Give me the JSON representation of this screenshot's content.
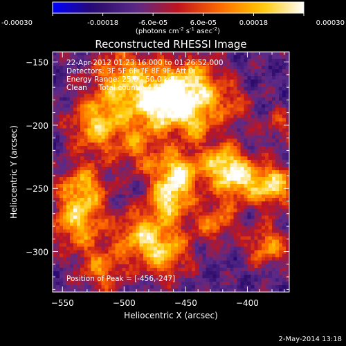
{
  "colorbar": {
    "ticks": [
      "-0.00030",
      "-0.00018",
      "-6.0e-05",
      "6.0e-05",
      "0.00018",
      "0.00030"
    ],
    "tick_values": [
      -0.0003,
      -0.00018,
      -6e-05,
      6e-05,
      0.00018,
      0.0003
    ],
    "unit_prefix": "(photons cm",
    "unit_exp1": "-2",
    "unit_mid": " s",
    "unit_exp2": "-1",
    "unit_mid2": " asec",
    "unit_exp3": "-2",
    "unit_suffix": ")",
    "range": [
      -0.0003,
      0.0003
    ]
  },
  "chart_data": {
    "type": "heatmap",
    "title": "Reconstructed RHESSI Image",
    "xlabel": "Heliocentric X (arcsec)",
    "ylabel": "Heliocentric Y (arcsec)",
    "xlim": [
      -558,
      -366
    ],
    "ylim": [
      -332,
      -142
    ],
    "x_ticks": [
      -550,
      -500,
      -450,
      -400
    ],
    "x_tick_labels": [
      "−550",
      "−500",
      "−450",
      "−400"
    ],
    "y_ticks": [
      -150,
      -200,
      -250,
      -300
    ],
    "y_tick_labels": [
      "−150",
      "−200",
      "−250",
      "−300"
    ],
    "peak_position": [
      -456,
      -247
    ],
    "colormap": [
      "#0000ff",
      "#2a0a6a",
      "#5a2a8a",
      "#c0141e",
      "#ff6a00",
      "#ffc800",
      "#ffffff"
    ]
  },
  "annotations": {
    "time_range": "22-Apr-2012 01:23:16.000 to 01:26:52.000",
    "detectors": "Detectors: 3F 5F 6F 7F 8F 9F, Att 0",
    "energy": "Energy Range: 25.0 - 50.0 keV",
    "clean": "Clean     Total counts: 4.42E+03",
    "peak": "Position of Peak = [-456,-247]"
  },
  "footer": {
    "date": "2-May-2014 13:18"
  }
}
